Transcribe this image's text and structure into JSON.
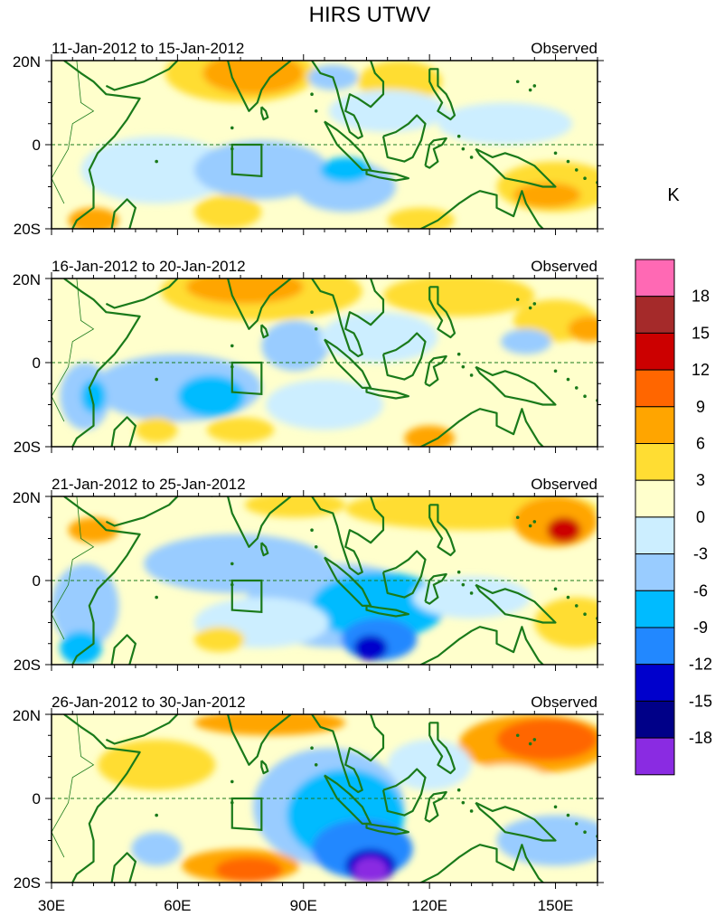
{
  "title": "HIRS UTWV",
  "units": "K",
  "y_axis": {
    "top": "20N",
    "middle": "0",
    "bottom": "20S"
  },
  "x_axis": [
    "30E",
    "60E",
    "90E",
    "120E",
    "150E"
  ],
  "colorbar": {
    "labels": [
      "18",
      "15",
      "12",
      "9",
      "6",
      "3",
      "0",
      "-3",
      "-6",
      "-9",
      "-12",
      "-15",
      "-18"
    ],
    "colors": [
      "#ff69b4",
      "#a52a2a",
      "#cc0000",
      "#ff6600",
      "#ffa500",
      "#ffdd33",
      "#ffffcc",
      "#cceeff",
      "#99ccff",
      "#00bbff",
      "#2288ff",
      "#0000cc",
      "#000088",
      "#8a2be2"
    ]
  },
  "panels": [
    {
      "period": "11-Jan-2012 to 15-Jan-2012",
      "label": "Observed"
    },
    {
      "period": "16-Jan-2012 to 20-Jan-2012",
      "label": "Observed"
    },
    {
      "period": "21-Jan-2012 to 25-Jan-2012",
      "label": "Observed"
    },
    {
      "period": "26-Jan-2012 to 30-Jan-2012",
      "label": "Observed"
    }
  ]
}
